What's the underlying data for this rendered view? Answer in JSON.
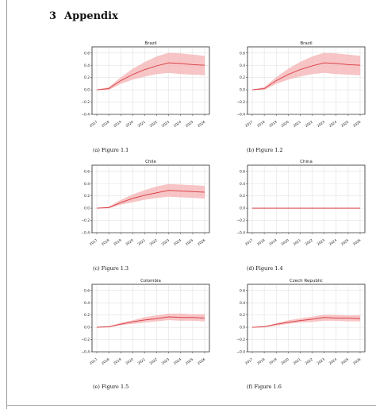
{
  "section": {
    "number": "3",
    "title": "Appendix"
  },
  "chart_data": [
    {
      "type": "line",
      "title": "Brazil",
      "caption": "(a) Figure 1.1",
      "x": [
        "2017",
        "2018",
        "2019",
        "2020",
        "2021",
        "2022",
        "2023",
        "2024",
        "2025",
        "2026"
      ],
      "ylim": [
        -0.4,
        0.7
      ],
      "yticks": [
        "0.6",
        "0.4",
        "0.2",
        "0.0",
        "−0.2",
        "−0.4"
      ],
      "grid": true,
      "line_color": "#d9464b",
      "band_color": "#f6b6b8",
      "series": [
        {
          "values": [
            0.0,
            0.02,
            0.15,
            0.25,
            0.33,
            0.39,
            0.44,
            0.43,
            0.41,
            0.4
          ],
          "lower": [
            0.0,
            0.0,
            0.1,
            0.17,
            0.22,
            0.26,
            0.28,
            0.26,
            0.25,
            0.24
          ],
          "upper": [
            0.0,
            0.04,
            0.2,
            0.34,
            0.45,
            0.54,
            0.6,
            0.59,
            0.57,
            0.55
          ]
        }
      ]
    },
    {
      "type": "line",
      "title": "Brazil",
      "caption": "(b) Figure 1.2",
      "x": [
        "2017",
        "2018",
        "2019",
        "2020",
        "2021",
        "2022",
        "2023",
        "2024",
        "2025",
        "2026"
      ],
      "ylim": [
        -0.4,
        0.7
      ],
      "yticks": [
        "0.6",
        "0.4",
        "0.2",
        "0.0",
        "−0.2",
        "−0.4"
      ],
      "grid": true,
      "line_color": "#d9464b",
      "band_color": "#f6b6b8",
      "series": [
        {
          "values": [
            0.0,
            0.02,
            0.15,
            0.25,
            0.33,
            0.39,
            0.44,
            0.43,
            0.41,
            0.4
          ],
          "lower": [
            0.0,
            0.0,
            0.1,
            0.17,
            0.22,
            0.26,
            0.28,
            0.26,
            0.25,
            0.24
          ],
          "upper": [
            0.0,
            0.04,
            0.2,
            0.34,
            0.45,
            0.54,
            0.6,
            0.59,
            0.57,
            0.55
          ]
        }
      ]
    },
    {
      "type": "line",
      "title": "Chile",
      "caption": "(c) Figure 1.3",
      "x": [
        "2017",
        "2018",
        "2019",
        "2020",
        "2021",
        "2022",
        "2023",
        "2024",
        "2025",
        "2026"
      ],
      "ylim": [
        -0.4,
        0.7
      ],
      "yticks": [
        "0.6",
        "0.4",
        "0.2",
        "0.0",
        "−0.2",
        "−0.4"
      ],
      "grid": true,
      "line_color": "#d9464b",
      "band_color": "#f6b6b8",
      "series": [
        {
          "values": [
            0.0,
            0.01,
            0.09,
            0.16,
            0.21,
            0.25,
            0.29,
            0.28,
            0.27,
            0.26
          ],
          "lower": [
            0.0,
            0.0,
            0.06,
            0.1,
            0.14,
            0.17,
            0.19,
            0.18,
            0.17,
            0.16
          ],
          "upper": [
            0.0,
            0.02,
            0.13,
            0.22,
            0.29,
            0.35,
            0.39,
            0.38,
            0.37,
            0.36
          ]
        }
      ]
    },
    {
      "type": "line",
      "title": "China",
      "caption": "(d) Figure 1.4",
      "x": [
        "2017",
        "2018",
        "2019",
        "2020",
        "2021",
        "2022",
        "2023",
        "2024",
        "2025",
        "2026"
      ],
      "ylim": [
        -0.4,
        0.7
      ],
      "yticks": [
        "0.6",
        "0.4",
        "0.2",
        "0.0",
        "−0.2",
        "−0.4"
      ],
      "grid": true,
      "line_color": "#d9464b",
      "band_color": "#f6b6b8",
      "series": [
        {
          "values": [
            0,
            0,
            0,
            0,
            0,
            0,
            0,
            0,
            0,
            0
          ],
          "lower": [
            0,
            0,
            0,
            0,
            0,
            0,
            0,
            0,
            0,
            0
          ],
          "upper": [
            0,
            0,
            0,
            0,
            0,
            0,
            0,
            0,
            0,
            0
          ]
        }
      ]
    },
    {
      "type": "line",
      "title": "Colombia",
      "caption": "(e) Figure 1.5",
      "x": [
        "2017",
        "2018",
        "2019",
        "2020",
        "2021",
        "2022",
        "2023",
        "2024",
        "2025",
        "2026"
      ],
      "ylim": [
        -0.4,
        0.7
      ],
      "yticks": [
        "0.6",
        "0.4",
        "0.2",
        "0.0",
        "−0.2",
        "−0.4"
      ],
      "grid": true,
      "line_color": "#d9464b",
      "band_color": "#f6b6b8",
      "series": [
        {
          "values": [
            0.0,
            0.01,
            0.05,
            0.09,
            0.12,
            0.14,
            0.17,
            0.16,
            0.16,
            0.15
          ],
          "lower": [
            0.0,
            0.0,
            0.04,
            0.06,
            0.08,
            0.1,
            0.12,
            0.11,
            0.11,
            0.1
          ],
          "upper": [
            0.0,
            0.01,
            0.07,
            0.11,
            0.16,
            0.19,
            0.22,
            0.22,
            0.21,
            0.21
          ]
        }
      ]
    },
    {
      "type": "line",
      "title": "Czech Republic",
      "caption": "(f) Figure 1.6",
      "x": [
        "2017",
        "2018",
        "2019",
        "2020",
        "2021",
        "2022",
        "2023",
        "2024",
        "2025",
        "2026"
      ],
      "ylim": [
        -0.4,
        0.7
      ],
      "yticks": [
        "0.6",
        "0.4",
        "0.2",
        "0.0",
        "−0.2",
        "−0.4"
      ],
      "grid": true,
      "line_color": "#d9464b",
      "band_color": "#f6b6b8",
      "series": [
        {
          "values": [
            0.0,
            0.01,
            0.05,
            0.08,
            0.11,
            0.13,
            0.16,
            0.15,
            0.15,
            0.14
          ],
          "lower": [
            0.0,
            0.0,
            0.03,
            0.06,
            0.08,
            0.09,
            0.11,
            0.11,
            0.1,
            0.1
          ],
          "upper": [
            0.0,
            0.01,
            0.06,
            0.11,
            0.14,
            0.17,
            0.2,
            0.2,
            0.19,
            0.19
          ]
        }
      ]
    }
  ]
}
